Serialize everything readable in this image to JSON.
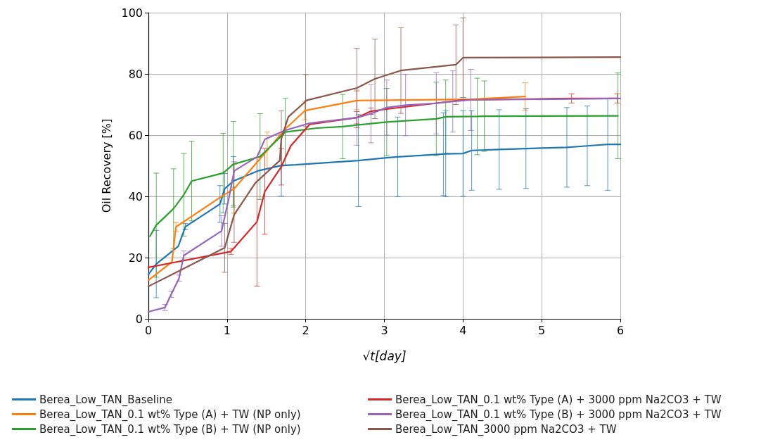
{
  "chart_data": {
    "type": "line",
    "xlabel": "√t[day]",
    "ylabel": "Oil Recovery [%]",
    "xlim": [
      0,
      6
    ],
    "xticks": [
      0,
      1,
      2,
      3,
      4,
      5,
      6
    ],
    "ylim": [
      0,
      100
    ],
    "yticks": [
      0,
      20,
      40,
      60,
      80,
      100
    ],
    "grid": true,
    "legend": "bottom",
    "marker": "none",
    "line_style": "solid",
    "series": [
      {
        "name": "Berea_Low_TAN_Baseline",
        "color": "#1f77b4",
        "x": [
          0,
          0.1,
          0.38,
          0.47,
          0.91,
          0.97,
          1.08,
          1.39,
          1.69,
          1.87,
          2.67,
          3.03,
          3.17,
          3.75,
          3.78,
          4.0,
          4.11,
          4.46,
          4.8,
          5.32,
          5.58,
          5.84,
          6
        ],
        "values": [
          14.5,
          17.9,
          23.7,
          30.1,
          37.5,
          42.5,
          45,
          48.3,
          50.1,
          50.3,
          51.7,
          52.6,
          52.9,
          53.8,
          53.9,
          54,
          55,
          55.3,
          55.6,
          56,
          56.5,
          57,
          57
        ],
        "errors": [
          null,
          11,
          null,
          1,
          6,
          5,
          8,
          null,
          10,
          null,
          15,
          null,
          13,
          13.5,
          14,
          14,
          13,
          13,
          13,
          13,
          13,
          15,
          null
        ]
      },
      {
        "name": "Berea_Low_TAN_0.1 wt% Type (A) + TW (NP only)",
        "color": "#ff7f0e",
        "x": [
          0,
          0.3,
          0.35,
          0.96,
          1.09,
          1.51,
          1.74,
          1.99,
          2.65,
          3.03,
          4.1,
          4.79
        ],
        "values": [
          12.6,
          18.6,
          30,
          40.5,
          42.5,
          55,
          62,
          68,
          71.3,
          71.4,
          71.7,
          72.6
        ],
        "errors": [
          null,
          null,
          1.5,
          null,
          8,
          6,
          null,
          3,
          3,
          null,
          null,
          4.5
        ]
      },
      {
        "name": "Berea_Low_TAN_0.1 wt% Type (B) + TW (NP only)",
        "color": "#2ca02c",
        "x": [
          0.02,
          0.1,
          0.32,
          0.45,
          0.55,
          0.95,
          1.08,
          1.42,
          1.74,
          2.14,
          2.47,
          3.03,
          3.66,
          3.78,
          4.18,
          4.27,
          5.97
        ],
        "values": [
          27,
          30.6,
          36,
          40.5,
          45,
          47.6,
          50.5,
          53,
          61,
          62.3,
          62.8,
          64.3,
          65.3,
          66,
          66.1,
          66.2,
          66.3
        ],
        "errors": [
          null,
          17,
          13,
          13.5,
          13,
          13,
          14,
          14,
          11,
          null,
          10.5,
          11,
          12,
          12,
          12.5,
          11.5,
          14
        ]
      },
      {
        "name": "Berea_Low_TAN_0.1 wt% Type (A) + 3000 ppm Na2CO3 + TW",
        "color": "#d62728",
        "x": [
          0,
          1.05,
          1.38,
          1.48,
          1.69,
          1.81,
          2.05,
          2.65,
          2.83,
          3.03,
          4.0,
          5.38,
          5.96
        ],
        "values": [
          16.8,
          22,
          31.7,
          41.6,
          49.7,
          56.5,
          63.5,
          65.7,
          67.8,
          68.5,
          71.5,
          72,
          72
        ],
        "errors": [
          null,
          1,
          21,
          14,
          6,
          null,
          null,
          2,
          1,
          null,
          null,
          1.5,
          1.5
        ]
      },
      {
        "name": "Berea_Low_TAN_0.1 wt% Type (B) + 3000 ppm Na2CO3 + TW",
        "color": "#9467bd",
        "x": [
          0,
          0.21,
          0.29,
          0.39,
          0.45,
          0.93,
          1.02,
          1.09,
          1.38,
          1.48,
          1.72,
          2.05,
          2.65,
          2.83,
          3.03,
          3.27,
          3.66,
          3.87,
          4.1,
          6
        ],
        "values": [
          2.3,
          3.7,
          8,
          13.3,
          20.7,
          28.7,
          39,
          48.3,
          52.9,
          58.6,
          61.4,
          63.9,
          65.7,
          67,
          69,
          69.8,
          70.4,
          71,
          71.5,
          72
        ],
        "errors": [
          null,
          1,
          1,
          1,
          1.5,
          5,
          null,
          3,
          null,
          null,
          null,
          null,
          9,
          9.5,
          9,
          10,
          10,
          10,
          10,
          null
        ]
      },
      {
        "name": "Berea_Low_TAN_3000 ppm Na2CO3 + TW",
        "color": "#8c564b",
        "x": [
          0,
          0.97,
          1.09,
          1.36,
          1.67,
          1.69,
          1.78,
          1.99,
          2.0,
          2.65,
          2.88,
          3.21,
          3.91,
          4.0,
          6
        ],
        "values": [
          10.6,
          23.2,
          34,
          44.4,
          51.7,
          58.9,
          66,
          70.8,
          71.3,
          75.4,
          78.4,
          81.1,
          83,
          85.3,
          85.5
        ],
        "errors": [
          null,
          8,
          9,
          null,
          null,
          9,
          null,
          null,
          8.5,
          13,
          13,
          14,
          13,
          13,
          null
        ]
      }
    ]
  }
}
